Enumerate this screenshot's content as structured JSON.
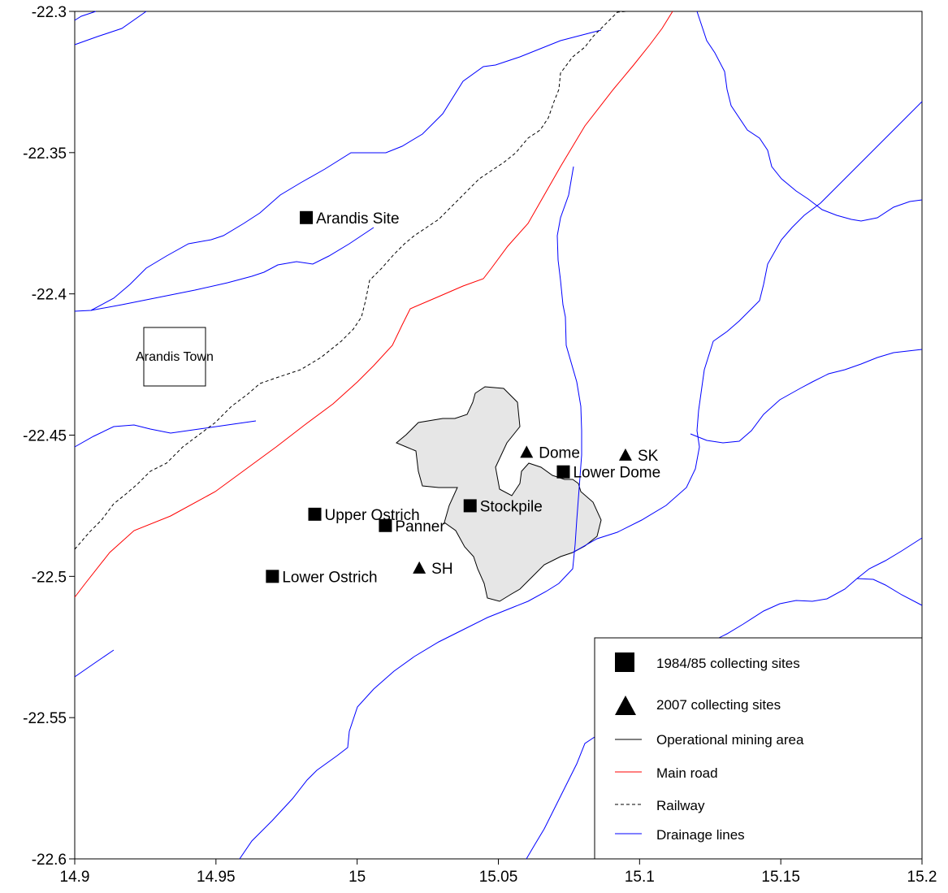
{
  "map": {
    "x_axis": {
      "range": [
        14.9,
        15.2
      ],
      "ticks": [
        "14.9",
        "14.95",
        "15",
        "15.05",
        "15.1",
        "15.15",
        "15.2"
      ]
    },
    "y_axis": {
      "range": [
        -22.6,
        -22.3
      ],
      "ticks": [
        "-22.3",
        "-22.35",
        "-22.4",
        "-22.45",
        "-22.5",
        "-22.55",
        "-22.6"
      ]
    },
    "town": {
      "label": "Arandis Town"
    },
    "sites_1984": [
      {
        "name": "Arandis Site",
        "lon": 14.982,
        "lat": -22.373
      },
      {
        "name": "Upper Ostrich",
        "lon": 14.985,
        "lat": -22.478
      },
      {
        "name": "Panner",
        "lon": 15.01,
        "lat": -22.482
      },
      {
        "name": "Stockpile",
        "lon": 15.04,
        "lat": -22.475
      },
      {
        "name": "Lower Dome",
        "lon": 15.073,
        "lat": -22.463
      },
      {
        "name": "Lower Ostrich",
        "lon": 14.97,
        "lat": -22.5
      }
    ],
    "sites_2007": [
      {
        "name": "Dome",
        "lon": 15.06,
        "lat": -22.456
      },
      {
        "name": "SK",
        "lon": 15.095,
        "lat": -22.457
      },
      {
        "name": "SH",
        "lon": 15.022,
        "lat": -22.497
      }
    ],
    "colors": {
      "main_road": "#ff0000",
      "drainage": "#0000ff",
      "railway": "#000000",
      "mine_fill": "#e6e6e6",
      "mine_outline": "#000000"
    }
  },
  "legend": {
    "items": [
      {
        "symbol": "square",
        "label": "1984/85 collecting sites"
      },
      {
        "symbol": "triangle",
        "label": "2007 collecting sites"
      },
      {
        "symbol": "line-black",
        "label": "Operational mining area"
      },
      {
        "symbol": "line-red",
        "label": "Main road"
      },
      {
        "symbol": "line-dashed",
        "label": "Railway"
      },
      {
        "symbol": "line-blue",
        "label": "Drainage lines"
      }
    ]
  }
}
